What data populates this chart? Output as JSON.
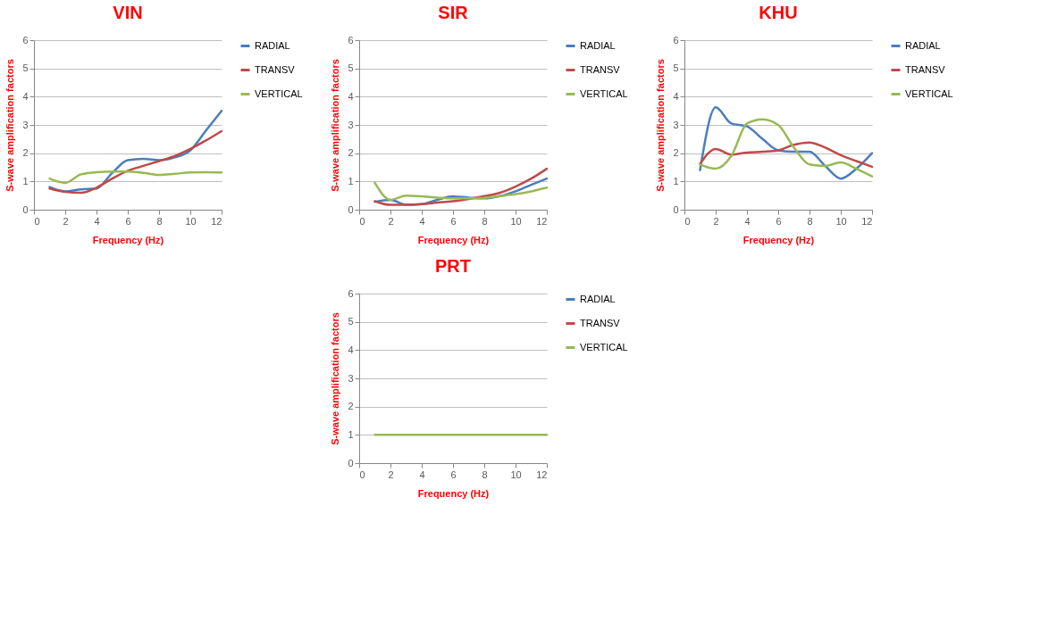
{
  "chart_data": [
    {
      "type": "line",
      "title": "VIN",
      "xlabel": "Frequency (Hz)",
      "ylabel": "S-wave amplification factors",
      "x": [
        1,
        2,
        3,
        4,
        5,
        6,
        7,
        8,
        9,
        10,
        11,
        12
      ],
      "xlim": [
        0,
        12
      ],
      "xticks": [
        0,
        2,
        4,
        6,
        8,
        10,
        12
      ],
      "ylim": [
        0,
        6
      ],
      "yticks": [
        0,
        1,
        2,
        3,
        4,
        5,
        6
      ],
      "grid": "y",
      "legend": "right",
      "series": [
        {
          "name": "RADIAL",
          "color": "#4a7ebb",
          "values": [
            0.8,
            0.65,
            0.72,
            0.75,
            1.3,
            1.75,
            1.8,
            1.75,
            1.85,
            2.1,
            2.8,
            3.5
          ]
        },
        {
          "name": "TRANSV",
          "color": "#be4b48",
          "values": [
            0.75,
            0.63,
            0.6,
            0.78,
            1.1,
            1.38,
            1.55,
            1.72,
            1.9,
            2.15,
            2.45,
            2.78
          ]
        },
        {
          "name": "VERTICAL",
          "color": "#98b954",
          "values": [
            1.1,
            0.95,
            1.25,
            1.33,
            1.35,
            1.35,
            1.3,
            1.23,
            1.27,
            1.32,
            1.33,
            1.32
          ]
        }
      ]
    },
    {
      "type": "line",
      "title": "SIR",
      "xlabel": "Frequency (Hz)",
      "ylabel": "S-wave amplification factors",
      "x": [
        1,
        2,
        3,
        4,
        5,
        6,
        7,
        8,
        9,
        10,
        11,
        12
      ],
      "xlim": [
        0,
        12
      ],
      "xticks": [
        0,
        2,
        4,
        6,
        8,
        10,
        12
      ],
      "ylim": [
        0,
        6
      ],
      "yticks": [
        0,
        1,
        2,
        3,
        4,
        5,
        6
      ],
      "grid": "y",
      "legend": "right",
      "series": [
        {
          "name": "RADIAL",
          "color": "#4a7ebb",
          "values": [
            0.28,
            0.35,
            0.18,
            0.2,
            0.35,
            0.47,
            0.43,
            0.4,
            0.48,
            0.65,
            0.88,
            1.1
          ]
        },
        {
          "name": "TRANSV",
          "color": "#be4b48",
          "values": [
            0.3,
            0.17,
            0.17,
            0.2,
            0.25,
            0.3,
            0.38,
            0.48,
            0.6,
            0.82,
            1.1,
            1.45
          ]
        },
        {
          "name": "VERTICAL",
          "color": "#98b954",
          "values": [
            0.95,
            0.35,
            0.5,
            0.47,
            0.43,
            0.4,
            0.4,
            0.42,
            0.48,
            0.55,
            0.65,
            0.78
          ]
        }
      ]
    },
    {
      "type": "line",
      "title": "KHU",
      "xlabel": "Frequency (Hz)",
      "ylabel": "S-wave amplification factors",
      "x": [
        1,
        2,
        3,
        4,
        5,
        6,
        7,
        8,
        9,
        10,
        11,
        12
      ],
      "xlim": [
        0,
        12
      ],
      "xticks": [
        0,
        2,
        4,
        6,
        8,
        10,
        12
      ],
      "ylim": [
        0,
        6
      ],
      "yticks": [
        0,
        1,
        2,
        3,
        4,
        5,
        6
      ],
      "grid": "y",
      "legend": "right",
      "series": [
        {
          "name": "RADIAL",
          "color": "#4a7ebb",
          "values": [
            1.4,
            3.62,
            3.05,
            2.95,
            2.5,
            2.1,
            2.05,
            2.05,
            1.55,
            1.1,
            1.45,
            2.0
          ]
        },
        {
          "name": "TRANSV",
          "color": "#be4b48",
          "values": [
            1.62,
            2.15,
            1.95,
            2.02,
            2.05,
            2.1,
            2.3,
            2.38,
            2.2,
            1.93,
            1.72,
            1.52
          ]
        },
        {
          "name": "VERTICAL",
          "color": "#98b954",
          "values": [
            1.6,
            1.45,
            1.9,
            3.05,
            3.2,
            3.0,
            2.2,
            1.6,
            1.55,
            1.67,
            1.45,
            1.18
          ]
        }
      ]
    },
    {
      "type": "line",
      "title": "PRT",
      "xlabel": "Frequency (Hz)",
      "ylabel": "S-wave amplification factors",
      "x": [
        1,
        2,
        3,
        4,
        5,
        6,
        7,
        8,
        9,
        10,
        11,
        12
      ],
      "xlim": [
        0,
        12
      ],
      "xticks": [
        0,
        2,
        4,
        6,
        8,
        10,
        12
      ],
      "ylim": [
        0,
        6
      ],
      "yticks": [
        0,
        1,
        2,
        3,
        4,
        5,
        6
      ],
      "grid": "y",
      "legend": "right",
      "series": [
        {
          "name": "RADIAL",
          "color": "#4a7ebb",
          "values": [
            null,
            null,
            null,
            null,
            null,
            null,
            null,
            null,
            null,
            null,
            null,
            null
          ]
        },
        {
          "name": "TRANSV",
          "color": "#be4b48",
          "values": [
            null,
            null,
            null,
            null,
            null,
            null,
            null,
            null,
            null,
            null,
            null,
            null
          ]
        },
        {
          "name": "VERTICAL",
          "color": "#98b954",
          "values": [
            1,
            1,
            1,
            1,
            1,
            1,
            1,
            1,
            1,
            1,
            1,
            1
          ]
        }
      ]
    }
  ]
}
